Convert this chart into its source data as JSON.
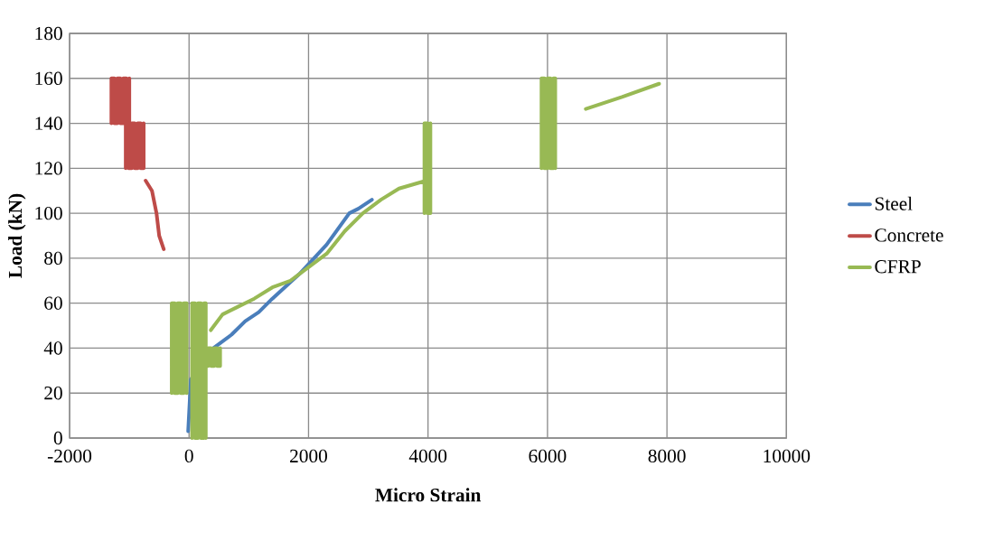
{
  "chart_data": {
    "type": "line",
    "xlabel": "Micro Strain",
    "ylabel": "Load (kN)",
    "xlim": [
      -2000,
      10000
    ],
    "ylim": [
      0,
      180
    ],
    "xticks": [
      -2000,
      0,
      2000,
      4000,
      6000,
      8000,
      10000
    ],
    "yticks": [
      0,
      20,
      40,
      60,
      80,
      100,
      120,
      140,
      160,
      180
    ],
    "grid": true,
    "legend": "right",
    "marker": "none",
    "series": [
      {
        "name": "Steel",
        "color": "#4a7ebb",
        "x": [
          -15,
          30,
          409,
          712,
          940,
          1167,
          1394,
          1848,
          2303,
          2682,
          2833,
          3061
        ],
        "values": [
          3,
          26,
          40,
          46,
          52,
          56,
          62,
          73,
          86,
          100,
          102,
          106
        ]
      },
      {
        "name": "Concrete",
        "color": "#be4b48",
        "x": [
          -1300,
          -1300,
          -1250,
          -1250,
          -1200,
          -1200,
          -1150,
          -1150,
          -1100,
          -1100,
          -1050,
          -1050,
          -1000,
          -1000,
          null,
          -1060,
          -1060,
          -1010,
          -1010,
          -960,
          -960,
          -910,
          -910,
          -860,
          -860,
          -810,
          -810,
          -760,
          -760,
          null,
          -727,
          -621,
          -545,
          -500,
          -424
        ],
        "values": [
          140,
          160,
          160,
          140,
          140,
          160,
          160,
          140,
          140,
          160,
          160,
          140,
          140,
          160,
          null,
          120,
          140,
          140,
          120,
          120,
          140,
          140,
          120,
          120,
          140,
          140,
          120,
          120,
          140,
          null,
          114.5,
          110,
          100,
          90,
          84
        ]
      },
      {
        "name": "CFRP",
        "color": "#98b954",
        "x": [
          -290,
          -290,
          -240,
          -240,
          -190,
          -190,
          -140,
          -140,
          -90,
          -90,
          -40,
          -40,
          null,
          50,
          50,
          100,
          100,
          150,
          150,
          200,
          200,
          250,
          250,
          280,
          280,
          null,
          320,
          320,
          370,
          370,
          420,
          420,
          470,
          470,
          520,
          520,
          null,
          364,
          561,
          788,
          1091,
          1394,
          1697,
          2000,
          2303,
          2606,
          2909,
          3212,
          3515,
          3970,
          null,
          3940,
          3940,
          3990,
          3990,
          4040,
          4040,
          null,
          5900,
          5900,
          5950,
          5950,
          6000,
          6000,
          6050,
          6050,
          6100,
          6100,
          6130,
          6130,
          null,
          6641,
          7247,
          7868
        ],
        "values": [
          20,
          60,
          60,
          20,
          20,
          60,
          60,
          20,
          20,
          60,
          60,
          20,
          null,
          0,
          60,
          60,
          0,
          0,
          60,
          60,
          0,
          0,
          60,
          60,
          0,
          null,
          32,
          40,
          40,
          32,
          32,
          40,
          40,
          32,
          32,
          40,
          null,
          48,
          55,
          58,
          62,
          67,
          70,
          76,
          82,
          92,
          100,
          106,
          111,
          114.5,
          null,
          100,
          140,
          140,
          100,
          100,
          140,
          null,
          120,
          160,
          160,
          120,
          120,
          160,
          160,
          120,
          120,
          160,
          160,
          120,
          null,
          146.4,
          151.7,
          157.6
        ]
      }
    ]
  }
}
